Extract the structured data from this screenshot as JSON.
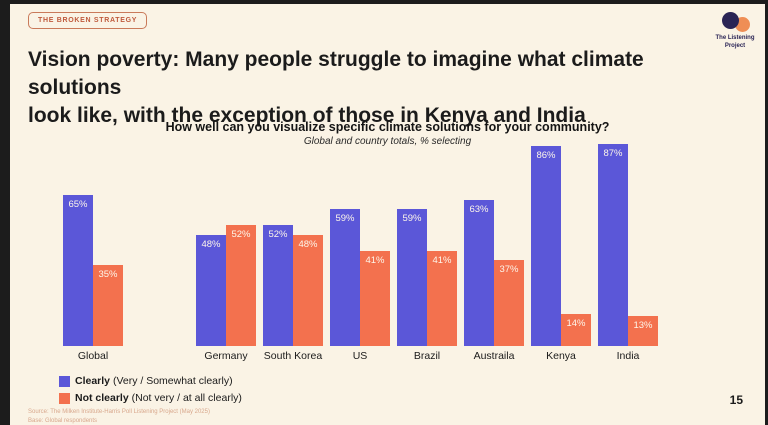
{
  "slide": {
    "badge": "THE BROKEN STRATEGY",
    "heading_line1": "Vision poverty: Many people struggle to imagine what climate solutions",
    "heading_line2": "look like, with the exception of those in Kenya and India",
    "page_number": "15",
    "source_line1": "Source: The Milken Institute-Harris Poll Listening Project (May 2025)",
    "source_line2": "Base: Global respondents"
  },
  "logo": {
    "name_line1": "The Listening",
    "name_line2": "Project"
  },
  "chart_data": {
    "type": "bar",
    "title": "How well can you visualize specific climate solutions for your community?",
    "subtitle": "Global and country totals, % selecting",
    "categories": [
      "Global",
      "Germany",
      "South Korea",
      "US",
      "Brazil",
      "Austraila",
      "Kenya",
      "India"
    ],
    "series": [
      {
        "name": "Clearly",
        "legend_detail": "(Very / Somewhat clearly)",
        "color": "#5b57d8",
        "values": [
          65,
          48,
          52,
          59,
          59,
          63,
          86,
          87
        ]
      },
      {
        "name": "Not clearly",
        "legend_detail": "(Not very / at all clearly)",
        "color": "#f3714e",
        "values": [
          35,
          52,
          48,
          41,
          41,
          37,
          14,
          13
        ]
      }
    ],
    "value_suffix": "%",
    "ylim": [
      0,
      100
    ],
    "grid": false,
    "legend_position": "bottom-left"
  },
  "colors": {
    "background": "#faf3e5",
    "frame": "#1c1c1c",
    "accent_blue": "#5b57d8",
    "accent_orange": "#f3714e",
    "badge": "#bf5a3c",
    "logo_navy": "#2a2455",
    "logo_orange": "#ef8e55",
    "source_text": "#d8a78c"
  }
}
